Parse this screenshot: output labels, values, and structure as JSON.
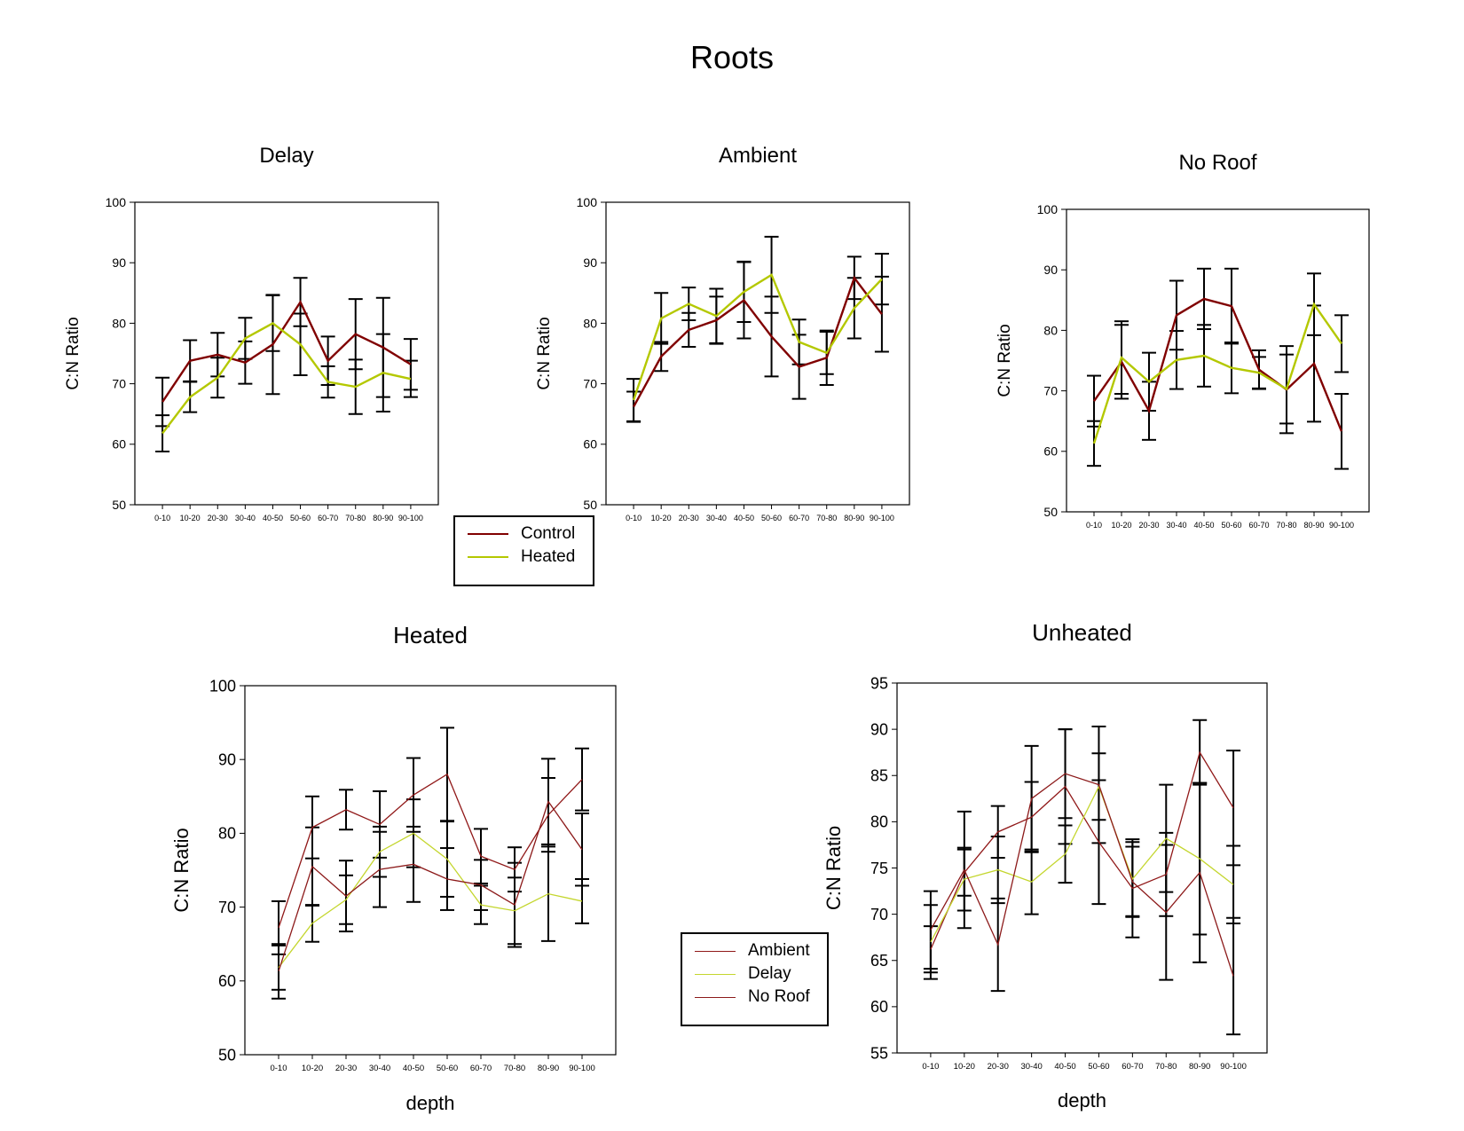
{
  "title": "Roots",
  "colors": {
    "control": "#800000",
    "heated": "#b4c800",
    "ambient": "#901818",
    "delay": "#c4d62e",
    "noroof": "#8c1a1a",
    "errorbar": "#000000"
  },
  "legends": [
    {
      "id": "legend-top",
      "entries": [
        {
          "label": "Control",
          "color": "#800000",
          "weight": "thick"
        },
        {
          "label": "Heated",
          "color": "#b4c800",
          "weight": "thick"
        }
      ]
    },
    {
      "id": "legend-bottom",
      "entries": [
        {
          "label": "Ambient",
          "color": "#901818",
          "weight": "thin"
        },
        {
          "label": "Delay",
          "color": "#c4d62e",
          "weight": "thin"
        },
        {
          "label": "No Roof",
          "color": "#8c1a1a",
          "weight": "thin"
        }
      ]
    }
  ],
  "chart_data": [
    {
      "type": "line",
      "title": "Delay",
      "xlabel": "",
      "ylabel": "C:N Ratio",
      "categories": [
        "0-10",
        "10-20",
        "20-30",
        "30-40",
        "40-50",
        "50-60",
        "60-70",
        "70-80",
        "80-90",
        "90-100"
      ],
      "ylim": [
        50,
        100
      ],
      "yticks": [
        50,
        60,
        70,
        80,
        90,
        100
      ],
      "grid": false,
      "series": [
        {
          "name": "Control",
          "color": "#800000",
          "stroke_weight": "thick",
          "values": [
            67,
            73.8,
            74.8,
            73.5,
            76.5,
            83.5,
            73.8,
            78.2,
            76,
            73.2
          ],
          "err": [
            4,
            3.4,
            3.6,
            3.5,
            8.2,
            4,
            4,
            5.8,
            8.2,
            4.2
          ]
        },
        {
          "name": "Heated",
          "color": "#b4c800",
          "stroke_weight": "thick",
          "values": [
            61.8,
            67.8,
            71,
            77.5,
            80,
            76.5,
            70.3,
            69.5,
            71.8,
            70.8
          ],
          "err": [
            3,
            2.5,
            3.3,
            3.4,
            4.6,
            5.1,
            2.6,
            4.5,
            6.4,
            3
          ]
        }
      ]
    },
    {
      "type": "line",
      "title": "Ambient",
      "xlabel": "",
      "ylabel": "C:N Ratio",
      "categories": [
        "0-10",
        "10-20",
        "20-30",
        "30-40",
        "40-50",
        "50-60",
        "60-70",
        "70-80",
        "80-90",
        "90-100"
      ],
      "ylim": [
        50,
        100
      ],
      "yticks": [
        50,
        60,
        70,
        80,
        90,
        100
      ],
      "grid": false,
      "series": [
        {
          "name": "Control",
          "color": "#800000",
          "stroke_weight": "thick",
          "values": [
            66.2,
            74.5,
            78.9,
            80.5,
            83.8,
            77.8,
            72.8,
            74.3,
            87.5,
            81.5
          ],
          "err": [
            2.5,
            2.4,
            2.8,
            3.9,
            6.3,
            6.6,
            5.3,
            4.5,
            3.5,
            6.2
          ]
        },
        {
          "name": "Heated",
          "color": "#b4c800",
          "stroke_weight": "thick",
          "values": [
            67.3,
            80.8,
            83.2,
            81.2,
            85.2,
            88,
            76.9,
            75.1,
            82.5,
            87.3
          ],
          "err": [
            3.5,
            4.2,
            2.7,
            4.5,
            5,
            6.3,
            3.7,
            3.5,
            5,
            4.2
          ]
        }
      ]
    },
    {
      "type": "line",
      "title": "No Roof",
      "xlabel": "",
      "ylabel": "C:N Ratio",
      "categories": [
        "0-10",
        "10-20",
        "20-30",
        "30-40",
        "40-50",
        "50-60",
        "60-70",
        "70-80",
        "80-90",
        "90-100"
      ],
      "ylim": [
        50,
        100
      ],
      "yticks": [
        50,
        60,
        70,
        80,
        90,
        100
      ],
      "grid": false,
      "series": [
        {
          "name": "Control",
          "color": "#800000",
          "stroke_weight": "thick",
          "values": [
            68.3,
            74.8,
            66.7,
            82.5,
            85.2,
            84,
            73.5,
            70.2,
            74.5,
            63.3
          ],
          "err": [
            4.2,
            6.1,
            4.8,
            5.7,
            5,
            6.2,
            3.2,
            7.2,
            9.6,
            6.2
          ]
        },
        {
          "name": "Heated",
          "color": "#b4c800",
          "stroke_weight": "thick",
          "values": [
            61.3,
            75.5,
            71.5,
            75.1,
            75.8,
            73.8,
            73,
            70.3,
            84.3,
            77.8
          ],
          "err": [
            3.7,
            6,
            4.8,
            4.8,
            5.1,
            4.2,
            2.6,
            5.7,
            5.1,
            4.7
          ]
        }
      ]
    },
    {
      "type": "line",
      "title": "Heated",
      "xlabel": "depth",
      "ylabel": "C:N Ratio",
      "categories": [
        "0-10",
        "10-20",
        "20-30",
        "30-40",
        "40-50",
        "50-60",
        "60-70",
        "70-80",
        "80-90",
        "90-100"
      ],
      "ylim": [
        50,
        100
      ],
      "yticks": [
        50,
        60,
        70,
        80,
        90,
        100
      ],
      "grid": false,
      "series": [
        {
          "name": "Ambient",
          "color": "#901818",
          "stroke_weight": "thin",
          "values": [
            67.2,
            80.8,
            83.2,
            81.2,
            85.2,
            88,
            76.9,
            75.1,
            82.5,
            87.3
          ],
          "err": [
            3.6,
            4.2,
            2.7,
            4.5,
            5,
            6.3,
            3.7,
            3,
            5,
            4.2
          ]
        },
        {
          "name": "Delay",
          "color": "#c4d62e",
          "stroke_weight": "thin",
          "values": [
            61.8,
            67.8,
            71,
            77.5,
            80,
            76.5,
            70.3,
            69.5,
            71.8,
            70.8
          ],
          "err": [
            3,
            2.5,
            3.3,
            3.4,
            4.6,
            5.1,
            2.6,
            4.5,
            6.4,
            3
          ]
        },
        {
          "name": "No Roof",
          "color": "#8c1a1a",
          "stroke_weight": "thin",
          "values": [
            61.3,
            75.5,
            71.5,
            75.1,
            75.8,
            73.8,
            73,
            70.3,
            84.3,
            77.8
          ],
          "err": [
            3.7,
            5.3,
            4.8,
            5.1,
            5.1,
            4.2,
            3.4,
            5.7,
            5.8,
            4.9
          ]
        }
      ]
    },
    {
      "type": "line",
      "title": "Unheated",
      "xlabel": "depth",
      "ylabel": "C:N Ratio",
      "categories": [
        "0-10",
        "10-20",
        "20-30",
        "30-40",
        "40-50",
        "50-60",
        "60-70",
        "70-80",
        "80-90",
        "90-100"
      ],
      "ylim": [
        55,
        95
      ],
      "yticks": [
        55,
        60,
        65,
        70,
        75,
        80,
        85,
        90,
        95
      ],
      "grid": false,
      "series": [
        {
          "name": "Ambient",
          "color": "#901818",
          "stroke_weight": "thin",
          "values": [
            66.2,
            74.5,
            78.9,
            80.5,
            83.8,
            77.8,
            72.8,
            74.3,
            87.5,
            81.5
          ],
          "err": [
            2.5,
            2.5,
            2.8,
            3.8,
            6.2,
            6.7,
            5.3,
            4.5,
            3.5,
            6.2
          ]
        },
        {
          "name": "Delay",
          "color": "#c4d62e",
          "stroke_weight": "thin",
          "values": [
            67,
            73.8,
            74.8,
            73.5,
            76.5,
            83.8,
            73.8,
            78.2,
            76,
            73.2
          ],
          "err": [
            4,
            3.4,
            3.6,
            3.5,
            3.1,
            3.6,
            4,
            5.8,
            8.2,
            4.2
          ]
        },
        {
          "name": "No Roof",
          "color": "#8c1a1a",
          "stroke_weight": "thin",
          "values": [
            68.3,
            74.8,
            66.7,
            82.5,
            85.2,
            84,
            73.5,
            70.2,
            74.5,
            63.3
          ],
          "err": [
            4.2,
            6.3,
            5,
            5.7,
            4.8,
            6.3,
            3.8,
            7.3,
            9.7,
            6.3
          ]
        }
      ]
    }
  ]
}
